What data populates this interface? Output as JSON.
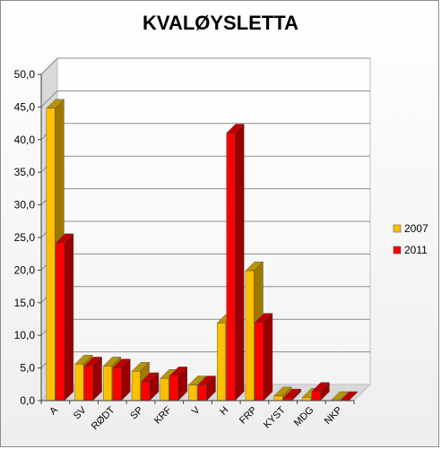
{
  "chart_data": {
    "type": "bar",
    "title": "KVALØYSLETTA",
    "xlabel": "",
    "ylabel": "",
    "ylim": [
      0,
      50
    ],
    "yticks": [
      "0,0",
      "5,0",
      "10,0",
      "15,0",
      "20,0",
      "25,0",
      "30,0",
      "35,0",
      "40,0",
      "45,0",
      "50,0"
    ],
    "grid": true,
    "legend_position": "right",
    "categories": [
      "A",
      "SV",
      "RØDT",
      "SP",
      "KRF",
      "V",
      "H",
      "FRP",
      "KYST",
      "MDG",
      "NKP"
    ],
    "series": [
      {
        "name": "2007",
        "values": [
          44.8,
          5.6,
          5.3,
          4.5,
          3.4,
          2.4,
          11.9,
          19.9,
          0.7,
          0.5,
          0.0
        ],
        "color": "#FFC000",
        "side": "#A07800",
        "top": "#B8940C"
      },
      {
        "name": "2011",
        "values": [
          24.2,
          5.3,
          5.0,
          2.9,
          3.8,
          2.4,
          41.0,
          12.0,
          0.4,
          1.4,
          0.0
        ],
        "color": "#FF0000",
        "side": "#990000",
        "top": "#C00000"
      }
    ]
  }
}
